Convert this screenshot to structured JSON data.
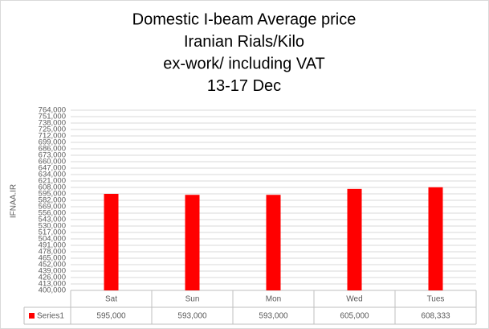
{
  "chart_data": {
    "type": "bar",
    "title": [
      "Domestic I-beam Average price",
      "Iranian Rials/Kilo",
      "ex-work/ including VAT",
      "13-17 Dec"
    ],
    "y_label": "IFNAA.IR",
    "categories": [
      "Sat",
      "Sun",
      "Mon",
      "Wed",
      "Tues"
    ],
    "series": [
      {
        "name": "Series1",
        "color": "#ff0000",
        "values": [
          595000,
          593000,
          593000,
          605000,
          608333
        ],
        "value_labels": [
          "595,000",
          "593,000",
          "593,000",
          "605,000",
          "608,333"
        ]
      }
    ],
    "ylim": [
      400000,
      764000
    ],
    "yticks": [
      {
        "value": 400000,
        "label": "400,000"
      },
      {
        "value": 413000,
        "label": "413,000"
      },
      {
        "value": 426000,
        "label": "426,000"
      },
      {
        "value": 439000,
        "label": "439,000"
      },
      {
        "value": 452000,
        "label": "452,000"
      },
      {
        "value": 465000,
        "label": "465,000"
      },
      {
        "value": 478000,
        "label": "478,000"
      },
      {
        "value": 491000,
        "label": "491,000"
      },
      {
        "value": 504000,
        "label": "504,000"
      },
      {
        "value": 517000,
        "label": "517,000"
      },
      {
        "value": 530000,
        "label": "530,000"
      },
      {
        "value": 543000,
        "label": "543,000"
      },
      {
        "value": 556000,
        "label": "556,000"
      },
      {
        "value": 569000,
        "label": "569,000"
      },
      {
        "value": 582000,
        "label": "582,000"
      },
      {
        "value": 595000,
        "label": "595,000"
      },
      {
        "value": 608000,
        "label": "608,000"
      },
      {
        "value": 621000,
        "label": "621,000"
      },
      {
        "value": 634000,
        "label": "634,000"
      },
      {
        "value": 647000,
        "label": "647,000"
      },
      {
        "value": 660000,
        "label": "660,000"
      },
      {
        "value": 673000,
        "label": "673,000"
      },
      {
        "value": 686000,
        "label": "686,000"
      },
      {
        "value": 699000,
        "label": "699,000"
      },
      {
        "value": 712000,
        "label": "712,000"
      },
      {
        "value": 725000,
        "label": "725,000"
      },
      {
        "value": 738000,
        "label": "738,000"
      },
      {
        "value": 751000,
        "label": "751,000"
      },
      {
        "value": 764000,
        "label": "764,000"
      }
    ],
    "grid": true
  }
}
